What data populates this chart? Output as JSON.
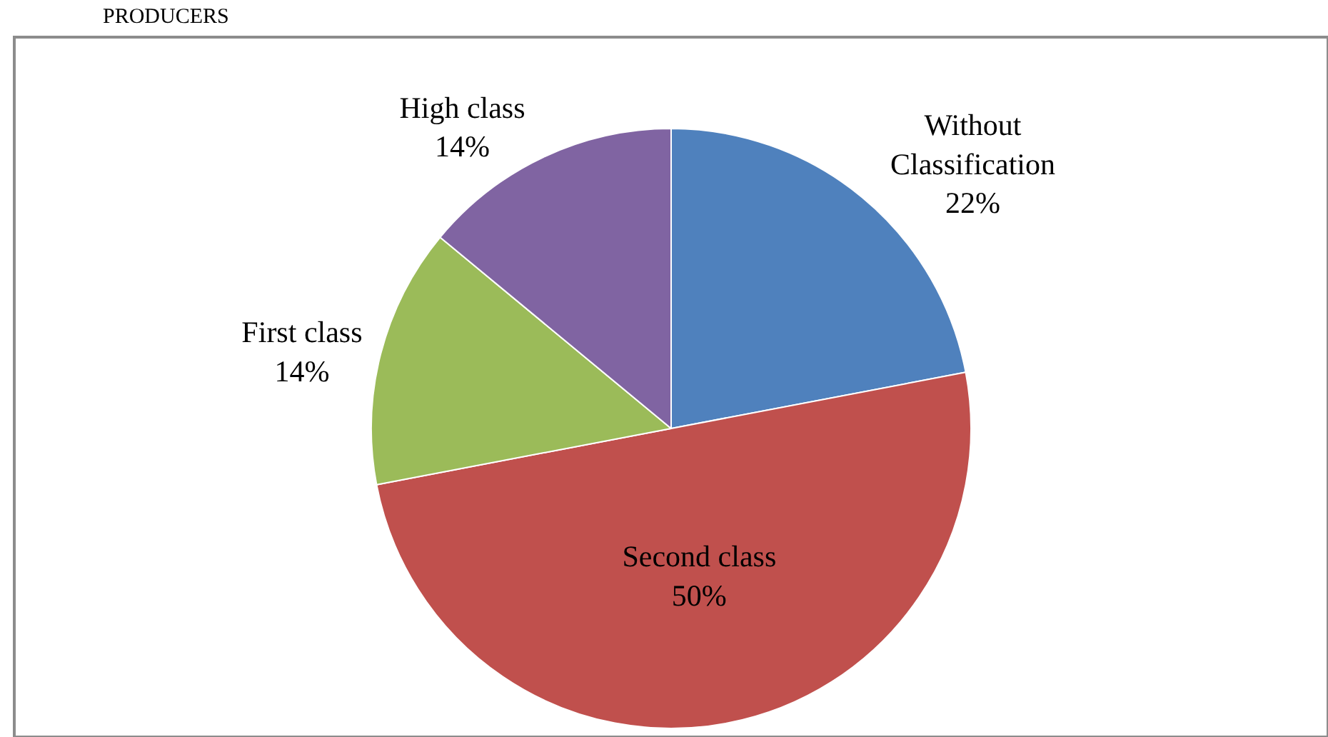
{
  "chart_data": {
    "type": "pie",
    "title": "PRODUCERS",
    "categories": [
      "Without Classification",
      "Second class",
      "First class",
      "High class"
    ],
    "values": [
      22,
      50,
      14,
      14
    ],
    "colors": [
      "#4f81bd",
      "#c0504d",
      "#9bbb59",
      "#8064a2"
    ],
    "value_labels": [
      "22%",
      "50%",
      "14%",
      "14%"
    ],
    "legend": false
  }
}
